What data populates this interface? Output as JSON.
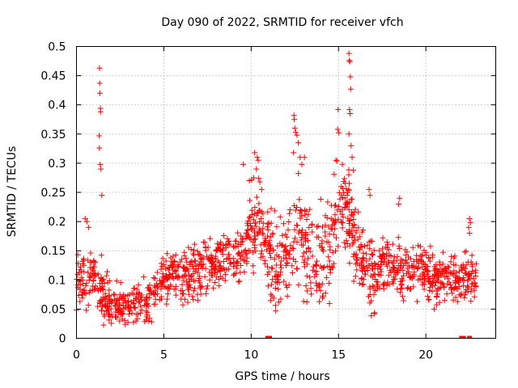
{
  "chart_data": {
    "type": "scatter",
    "title": "Day 090 of 2022, SRMTID for receiver vfch",
    "xlabel": "GPS time / hours",
    "ylabel": "SRMTID / TECUs",
    "xlim": [
      0,
      24.0
    ],
    "ylim": [
      0,
      0.5
    ],
    "x_ticks": [
      0,
      5,
      10,
      15,
      20
    ],
    "x_tick_labels": [
      "0",
      "5",
      "10",
      "15",
      "20"
    ],
    "y_ticks": [
      0,
      0.05,
      0.1,
      0.15,
      0.2,
      0.25,
      0.3,
      0.35,
      0.4,
      0.45,
      0.5
    ],
    "y_tick_labels": [
      "0",
      "0.05",
      "0.1",
      "0.15",
      "0.2",
      "0.25",
      "0.3",
      "0.35",
      "0.4",
      "0.45",
      "0.5"
    ],
    "grid": true,
    "marker": "plus",
    "color": "#ff0000",
    "trend": [
      [
        0.0,
        0.09
      ],
      [
        0.5,
        0.1
      ],
      [
        1.0,
        0.11
      ],
      [
        1.5,
        0.07
      ],
      [
        2.0,
        0.06
      ],
      [
        2.5,
        0.055
      ],
      [
        3.0,
        0.06
      ],
      [
        3.5,
        0.065
      ],
      [
        4.0,
        0.065
      ],
      [
        4.5,
        0.08
      ],
      [
        5.0,
        0.1
      ],
      [
        5.5,
        0.11
      ],
      [
        6.0,
        0.1
      ],
      [
        6.5,
        0.11
      ],
      [
        7.0,
        0.12
      ],
      [
        7.5,
        0.12
      ],
      [
        8.0,
        0.13
      ],
      [
        8.5,
        0.14
      ],
      [
        9.0,
        0.13
      ],
      [
        9.5,
        0.15
      ],
      [
        10.0,
        0.19
      ],
      [
        10.5,
        0.18
      ],
      [
        11.0,
        0.15
      ],
      [
        11.5,
        0.12
      ],
      [
        12.0,
        0.15
      ],
      [
        12.5,
        0.19
      ],
      [
        13.0,
        0.17
      ],
      [
        13.5,
        0.15
      ],
      [
        14.0,
        0.13
      ],
      [
        14.5,
        0.16
      ],
      [
        15.0,
        0.22
      ],
      [
        15.5,
        0.22
      ],
      [
        16.0,
        0.15
      ],
      [
        16.5,
        0.13
      ],
      [
        17.0,
        0.11
      ],
      [
        17.5,
        0.12
      ],
      [
        18.0,
        0.12
      ],
      [
        18.5,
        0.12
      ],
      [
        19.0,
        0.12
      ],
      [
        19.5,
        0.12
      ],
      [
        20.0,
        0.11
      ],
      [
        20.5,
        0.1
      ],
      [
        21.0,
        0.11
      ],
      [
        21.5,
        0.1
      ],
      [
        22.0,
        0.1
      ],
      [
        22.5,
        0.1
      ],
      [
        22.9,
        0.1
      ]
    ],
    "spread": [
      [
        0.0,
        0.05
      ],
      [
        1.5,
        0.05
      ],
      [
        2.0,
        0.035
      ],
      [
        4.5,
        0.04
      ],
      [
        9.5,
        0.05
      ],
      [
        10.0,
        0.08
      ],
      [
        12.5,
        0.09
      ],
      [
        15.0,
        0.09
      ],
      [
        16.0,
        0.06
      ],
      [
        19.0,
        0.05
      ],
      [
        22.9,
        0.04
      ]
    ],
    "outliers": [
      [
        1.32,
        0.463
      ],
      [
        1.33,
        0.437
      ],
      [
        1.34,
        0.42
      ],
      [
        1.37,
        0.394
      ],
      [
        1.38,
        0.388
      ],
      [
        1.3,
        0.347
      ],
      [
        1.31,
        0.326
      ],
      [
        1.36,
        0.298
      ],
      [
        1.4,
        0.29
      ],
      [
        1.45,
        0.245
      ],
      [
        15.6,
        0.488
      ],
      [
        15.62,
        0.476
      ],
      [
        15.65,
        0.474
      ],
      [
        15.68,
        0.448
      ],
      [
        15.7,
        0.427
      ],
      [
        15.63,
        0.392
      ],
      [
        15.66,
        0.385
      ],
      [
        14.98,
        0.392
      ],
      [
        14.95,
        0.358
      ],
      [
        15.02,
        0.352
      ],
      [
        15.6,
        0.35
      ],
      [
        15.72,
        0.33
      ],
      [
        15.78,
        0.31
      ],
      [
        15.85,
        0.288
      ],
      [
        14.85,
        0.305
      ],
      [
        12.45,
        0.382
      ],
      [
        12.47,
        0.375
      ],
      [
        12.5,
        0.36
      ],
      [
        12.55,
        0.353
      ],
      [
        12.62,
        0.348
      ],
      [
        12.7,
        0.335
      ],
      [
        12.42,
        0.318
      ],
      [
        12.8,
        0.31
      ],
      [
        12.9,
        0.298
      ],
      [
        13.05,
        0.31
      ],
      [
        10.2,
        0.318
      ],
      [
        10.35,
        0.31
      ],
      [
        10.4,
        0.305
      ],
      [
        10.3,
        0.29
      ],
      [
        10.15,
        0.275
      ],
      [
        10.5,
        0.268
      ],
      [
        10.6,
        0.255
      ],
      [
        9.55,
        0.298
      ],
      [
        9.9,
        0.27
      ],
      [
        16.75,
        0.255
      ],
      [
        16.8,
        0.245
      ],
      [
        18.5,
        0.24
      ],
      [
        18.45,
        0.23
      ],
      [
        22.5,
        0.205
      ],
      [
        22.55,
        0.198
      ],
      [
        22.45,
        0.19
      ],
      [
        22.5,
        0.18
      ],
      [
        0.5,
        0.205
      ],
      [
        0.6,
        0.2
      ],
      [
        0.7,
        0.19
      ]
    ],
    "zeros": [
      10.95,
      11.05,
      22.05,
      22.15,
      22.5
    ]
  }
}
